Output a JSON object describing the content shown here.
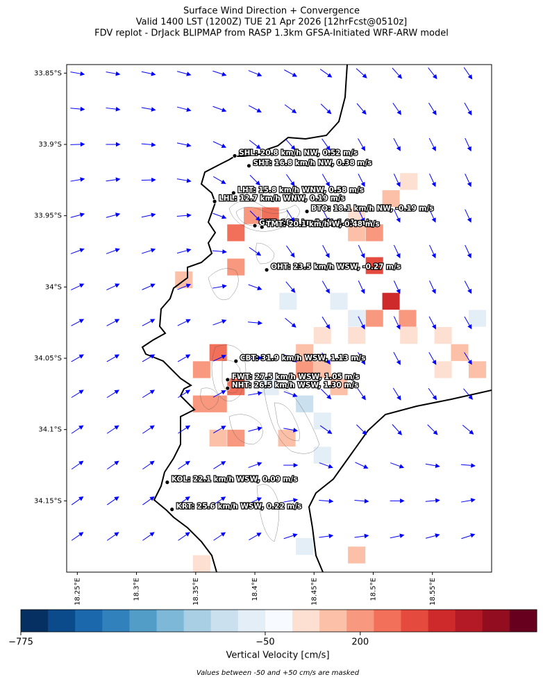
{
  "chart_data": {
    "type": "map",
    "title_lines": [
      "Surface Wind Direction + Convergence",
      "Valid 1400 LST (1200Z) TUE 21 Apr 2026 [12hrFcst@0510z]",
      "FDV replot - DrJack BLIPMAP from RASP 1.3km GFSA-Initiated WRF-ARW model"
    ],
    "xlim": [
      18.241,
      18.6
    ],
    "ylim": [
      -34.2,
      -33.844
    ],
    "xticks": [
      {
        "value": 18.25,
        "label": "18.25°E"
      },
      {
        "value": 18.3,
        "label": "18.3°E"
      },
      {
        "value": 18.35,
        "label": "18.35°E"
      },
      {
        "value": 18.4,
        "label": "18.4°E"
      },
      {
        "value": 18.45,
        "label": "18.45°E"
      },
      {
        "value": 18.5,
        "label": "18.5°E"
      },
      {
        "value": 18.55,
        "label": "18.55°E"
      }
    ],
    "yticks": [
      {
        "value": -33.85,
        "label": "33.85°S"
      },
      {
        "value": -33.9,
        "label": "33.9°S"
      },
      {
        "value": -33.95,
        "label": "33.95°S"
      },
      {
        "value": -34.0,
        "label": "34°S"
      },
      {
        "value": -34.05,
        "label": "34.05°S"
      },
      {
        "value": -34.1,
        "label": "34.1°S"
      },
      {
        "value": -34.15,
        "label": "34.15°S"
      }
    ],
    "stations": [
      {
        "label": "SHL: 20.8 km/h NW, 0.52 m/s",
        "lon": 18.383,
        "lat": -33.908
      },
      {
        "label": "SHT: 16.8 km/h NW, 0.38 m/s",
        "lon": 18.395,
        "lat": -33.915
      },
      {
        "label": "LHT: 15.8 km/h WNW, 0.58 m/s",
        "lon": 18.382,
        "lat": -33.934
      },
      {
        "label": "LHL: 12.7 km/h WNW, 0.19 m/s",
        "lon": 18.366,
        "lat": -33.94
      },
      {
        "label": "BTO: 18.1 km/h NW, -0.19 m/s",
        "lon": 18.444,
        "lat": -33.947
      },
      {
        "label": "GUT: 18.5 km/h W, 1.01 m/s",
        "lon": 18.4,
        "lat": -33.957
      },
      {
        "label": "TMT: 20.1 km/h W, 0.48 m/s",
        "lon": 18.406,
        "lat": -33.958
      },
      {
        "label": "OHT: 23.5 km/h WSW, -0.27 m/s",
        "lon": 18.41,
        "lat": -33.988
      },
      {
        "label": "CBT: 31.9 km/h WSW, 1.13 m/s",
        "lon": 18.384,
        "lat": -34.052
      },
      {
        "label": "FWT: 27.5 km/h WSW, 1.05 m/s",
        "lon": 18.377,
        "lat": -34.065
      },
      {
        "label": "NHT: 26.5 km/h WSW, 1.30 m/s",
        "lon": 18.377,
        "lat": -34.071
      },
      {
        "label": "KOL: 22.1 km/h WSW, 0.09 m/s",
        "lon": 18.326,
        "lat": -34.137
      },
      {
        "label": "KRT: 25.6 km/h WSW, 0.22 m/s",
        "lon": 18.33,
        "lat": -34.156
      }
    ],
    "wind": {
      "color": "#0000ff",
      "lons": [
        18.25,
        18.28,
        18.31,
        18.34,
        18.37,
        18.4,
        18.43,
        18.46,
        18.49,
        18.52,
        18.55,
        18.58
      ],
      "lats": [
        -33.85,
        -33.875,
        -33.9,
        -33.925,
        -33.95,
        -33.975,
        -34.0,
        -34.025,
        -34.05,
        -34.075,
        -34.1,
        -34.125,
        -34.15,
        -34.175
      ],
      "direction_deg": [
        [
          100,
          100,
          102,
          105,
          108,
          112,
          118,
          125,
          132,
          138,
          142,
          145
        ],
        [
          95,
          97,
          100,
          105,
          110,
          118,
          126,
          134,
          140,
          145,
          148,
          150
        ],
        [
          88,
          90,
          95,
          102,
          115,
          128,
          138,
          145,
          150,
          152,
          153,
          155
        ],
        [
          80,
          82,
          88,
          100,
          120,
          135,
          145,
          150,
          153,
          155,
          155,
          155
        ],
        [
          75,
          75,
          78,
          85,
          110,
          135,
          148,
          152,
          155,
          155,
          155,
          155
        ],
        [
          70,
          70,
          72,
          75,
          95,
          125,
          145,
          152,
          155,
          155,
          155,
          155
        ],
        [
          65,
          65,
          66,
          68,
          80,
          110,
          140,
          150,
          155,
          155,
          155,
          152
        ],
        [
          62,
          62,
          62,
          64,
          70,
          95,
          130,
          148,
          153,
          155,
          152,
          150
        ],
        [
          60,
          60,
          60,
          60,
          65,
          85,
          120,
          145,
          150,
          152,
          150,
          148
        ],
        [
          58,
          58,
          58,
          58,
          62,
          80,
          110,
          135,
          145,
          148,
          145,
          140
        ],
        [
          56,
          56,
          56,
          57,
          60,
          75,
          100,
          125,
          135,
          138,
          135,
          130
        ],
        [
          55,
          55,
          55,
          56,
          58,
          70,
          90,
          110,
          115,
          110,
          100,
          95
        ],
        [
          55,
          55,
          55,
          55,
          57,
          65,
          80,
          95,
          95,
          90,
          85,
          80
        ],
        [
          55,
          55,
          55,
          55,
          56,
          60,
          72,
          82,
          82,
          78,
          75,
          72
        ]
      ]
    },
    "convergence": {
      "cells": [
        [
          18.515,
          -34.01,
          500
        ],
        [
          18.501,
          -33.985,
          350
        ],
        [
          18.529,
          -34.022,
          150
        ],
        [
          18.501,
          -34.022,
          150
        ],
        [
          18.486,
          -34.034,
          80
        ],
        [
          18.457,
          -34.034,
          80
        ],
        [
          18.53,
          -34.034,
          80
        ],
        [
          18.559,
          -34.034,
          80
        ],
        [
          18.573,
          -34.046,
          120
        ],
        [
          18.588,
          -34.058,
          100
        ],
        [
          18.559,
          -34.058,
          60
        ],
        [
          18.442,
          -34.046,
          100
        ],
        [
          18.442,
          -34.058,
          150
        ],
        [
          18.457,
          -34.058,
          100
        ],
        [
          18.471,
          -34.07,
          100
        ],
        [
          18.369,
          -34.046,
          300
        ],
        [
          18.355,
          -34.058,
          150
        ],
        [
          18.384,
          -34.07,
          250
        ],
        [
          18.369,
          -34.082,
          200
        ],
        [
          18.355,
          -34.082,
          200
        ],
        [
          18.384,
          -34.106,
          150
        ],
        [
          18.369,
          -34.106,
          100
        ],
        [
          18.427,
          -34.106,
          120
        ],
        [
          18.34,
          -33.995,
          120
        ],
        [
          18.398,
          -33.95,
          200
        ],
        [
          18.413,
          -33.95,
          250
        ],
        [
          18.384,
          -33.962,
          300
        ],
        [
          18.384,
          -33.986,
          150
        ],
        [
          18.486,
          -33.962,
          100
        ],
        [
          18.501,
          -33.962,
          150
        ],
        [
          18.515,
          -33.938,
          120
        ],
        [
          18.486,
          -33.95,
          80
        ],
        [
          18.53,
          -33.926,
          80
        ],
        [
          18.457,
          -34.094,
          -100
        ],
        [
          18.442,
          -34.082,
          -120
        ],
        [
          18.457,
          -34.118,
          -100
        ],
        [
          18.413,
          -34.07,
          -80
        ],
        [
          18.471,
          -34.01,
          -80
        ],
        [
          18.486,
          -34.022,
          -60
        ],
        [
          18.588,
          -34.022,
          -80
        ],
        [
          18.428,
          -34.01,
          -60
        ],
        [
          18.442,
          -34.182,
          -80
        ],
        [
          18.486,
          -34.188,
          100
        ],
        [
          18.355,
          -34.194,
          60
        ]
      ]
    },
    "colorbar": {
      "label": "Vertical Velocity [cm/s]",
      "note": "Values between -50 and +50 cm/s are masked",
      "colors": [
        "#053061",
        "#0b4a8b",
        "#1c68ad",
        "#3181bd",
        "#529dc8",
        "#7db8d9",
        "#a8cfe4",
        "#cbe0ee",
        "#e4eef6",
        "#f7fbff",
        "#fde0d2",
        "#fbc0a7",
        "#f8987e",
        "#f2705a",
        "#e44a3e",
        "#cf2a2b",
        "#b31a26",
        "#930d20",
        "#67001f"
      ],
      "boundaries": [
        -775,
        -700,
        -600,
        -500,
        -400,
        -300,
        -200,
        -150,
        -100,
        -50,
        50,
        100,
        150,
        250,
        350,
        450,
        550,
        650,
        750,
        850
      ],
      "ticks": [
        {
          "value": -775,
          "label": "−775"
        },
        {
          "value": -50,
          "label": "−50"
        },
        200
      ]
    }
  }
}
